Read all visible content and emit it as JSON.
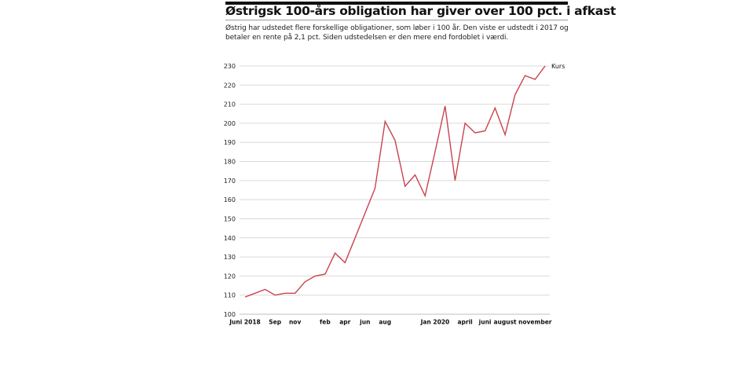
{
  "header": {
    "title": "Østrigsk 100-års obligation har giver over 100 pct. i afkast",
    "subtitle": "Østrig har udstedet flere forskellige obligationer, som løber i 100 år. Den viste er udstedt i 2017 og betaler en rente på 2,1 pct. Siden udstedelsen er den mere end fordoblet i værdi."
  },
  "colors": {
    "line": "#c8434f",
    "grid": "#d9d9d9",
    "topbar": "#111111"
  },
  "chart_data": {
    "type": "line",
    "title": "Østrigsk 100-års obligation har giver over 100 pct. i afkast",
    "xlabel": "",
    "ylabel": "",
    "ylim": [
      100,
      230
    ],
    "yticks": [
      100,
      110,
      120,
      130,
      140,
      150,
      160,
      170,
      180,
      190,
      200,
      210,
      220,
      230
    ],
    "grid": true,
    "legend": "top-right (end of line)",
    "x_ticks": [
      {
        "index": 0,
        "label": "Juni 2018"
      },
      {
        "index": 3,
        "label": "Sep"
      },
      {
        "index": 5,
        "label": "nov"
      },
      {
        "index": 8,
        "label": "feb"
      },
      {
        "index": 10,
        "label": "apr"
      },
      {
        "index": 12,
        "label": "jun"
      },
      {
        "index": 14,
        "label": "aug"
      },
      {
        "index": 19,
        "label": "Jan 2020"
      },
      {
        "index": 22,
        "label": "april"
      },
      {
        "index": 24,
        "label": "juni"
      },
      {
        "index": 26,
        "label": "august"
      },
      {
        "index": 29,
        "label": "november"
      }
    ],
    "series": [
      {
        "name": "Kurs",
        "values": [
          109,
          111,
          113,
          110,
          111,
          111,
          117,
          120,
          121,
          132,
          127,
          140,
          153,
          166,
          201,
          191,
          167,
          173,
          162,
          185,
          209,
          170,
          200,
          195,
          196,
          208,
          194,
          215,
          225,
          223,
          230
        ]
      }
    ]
  }
}
